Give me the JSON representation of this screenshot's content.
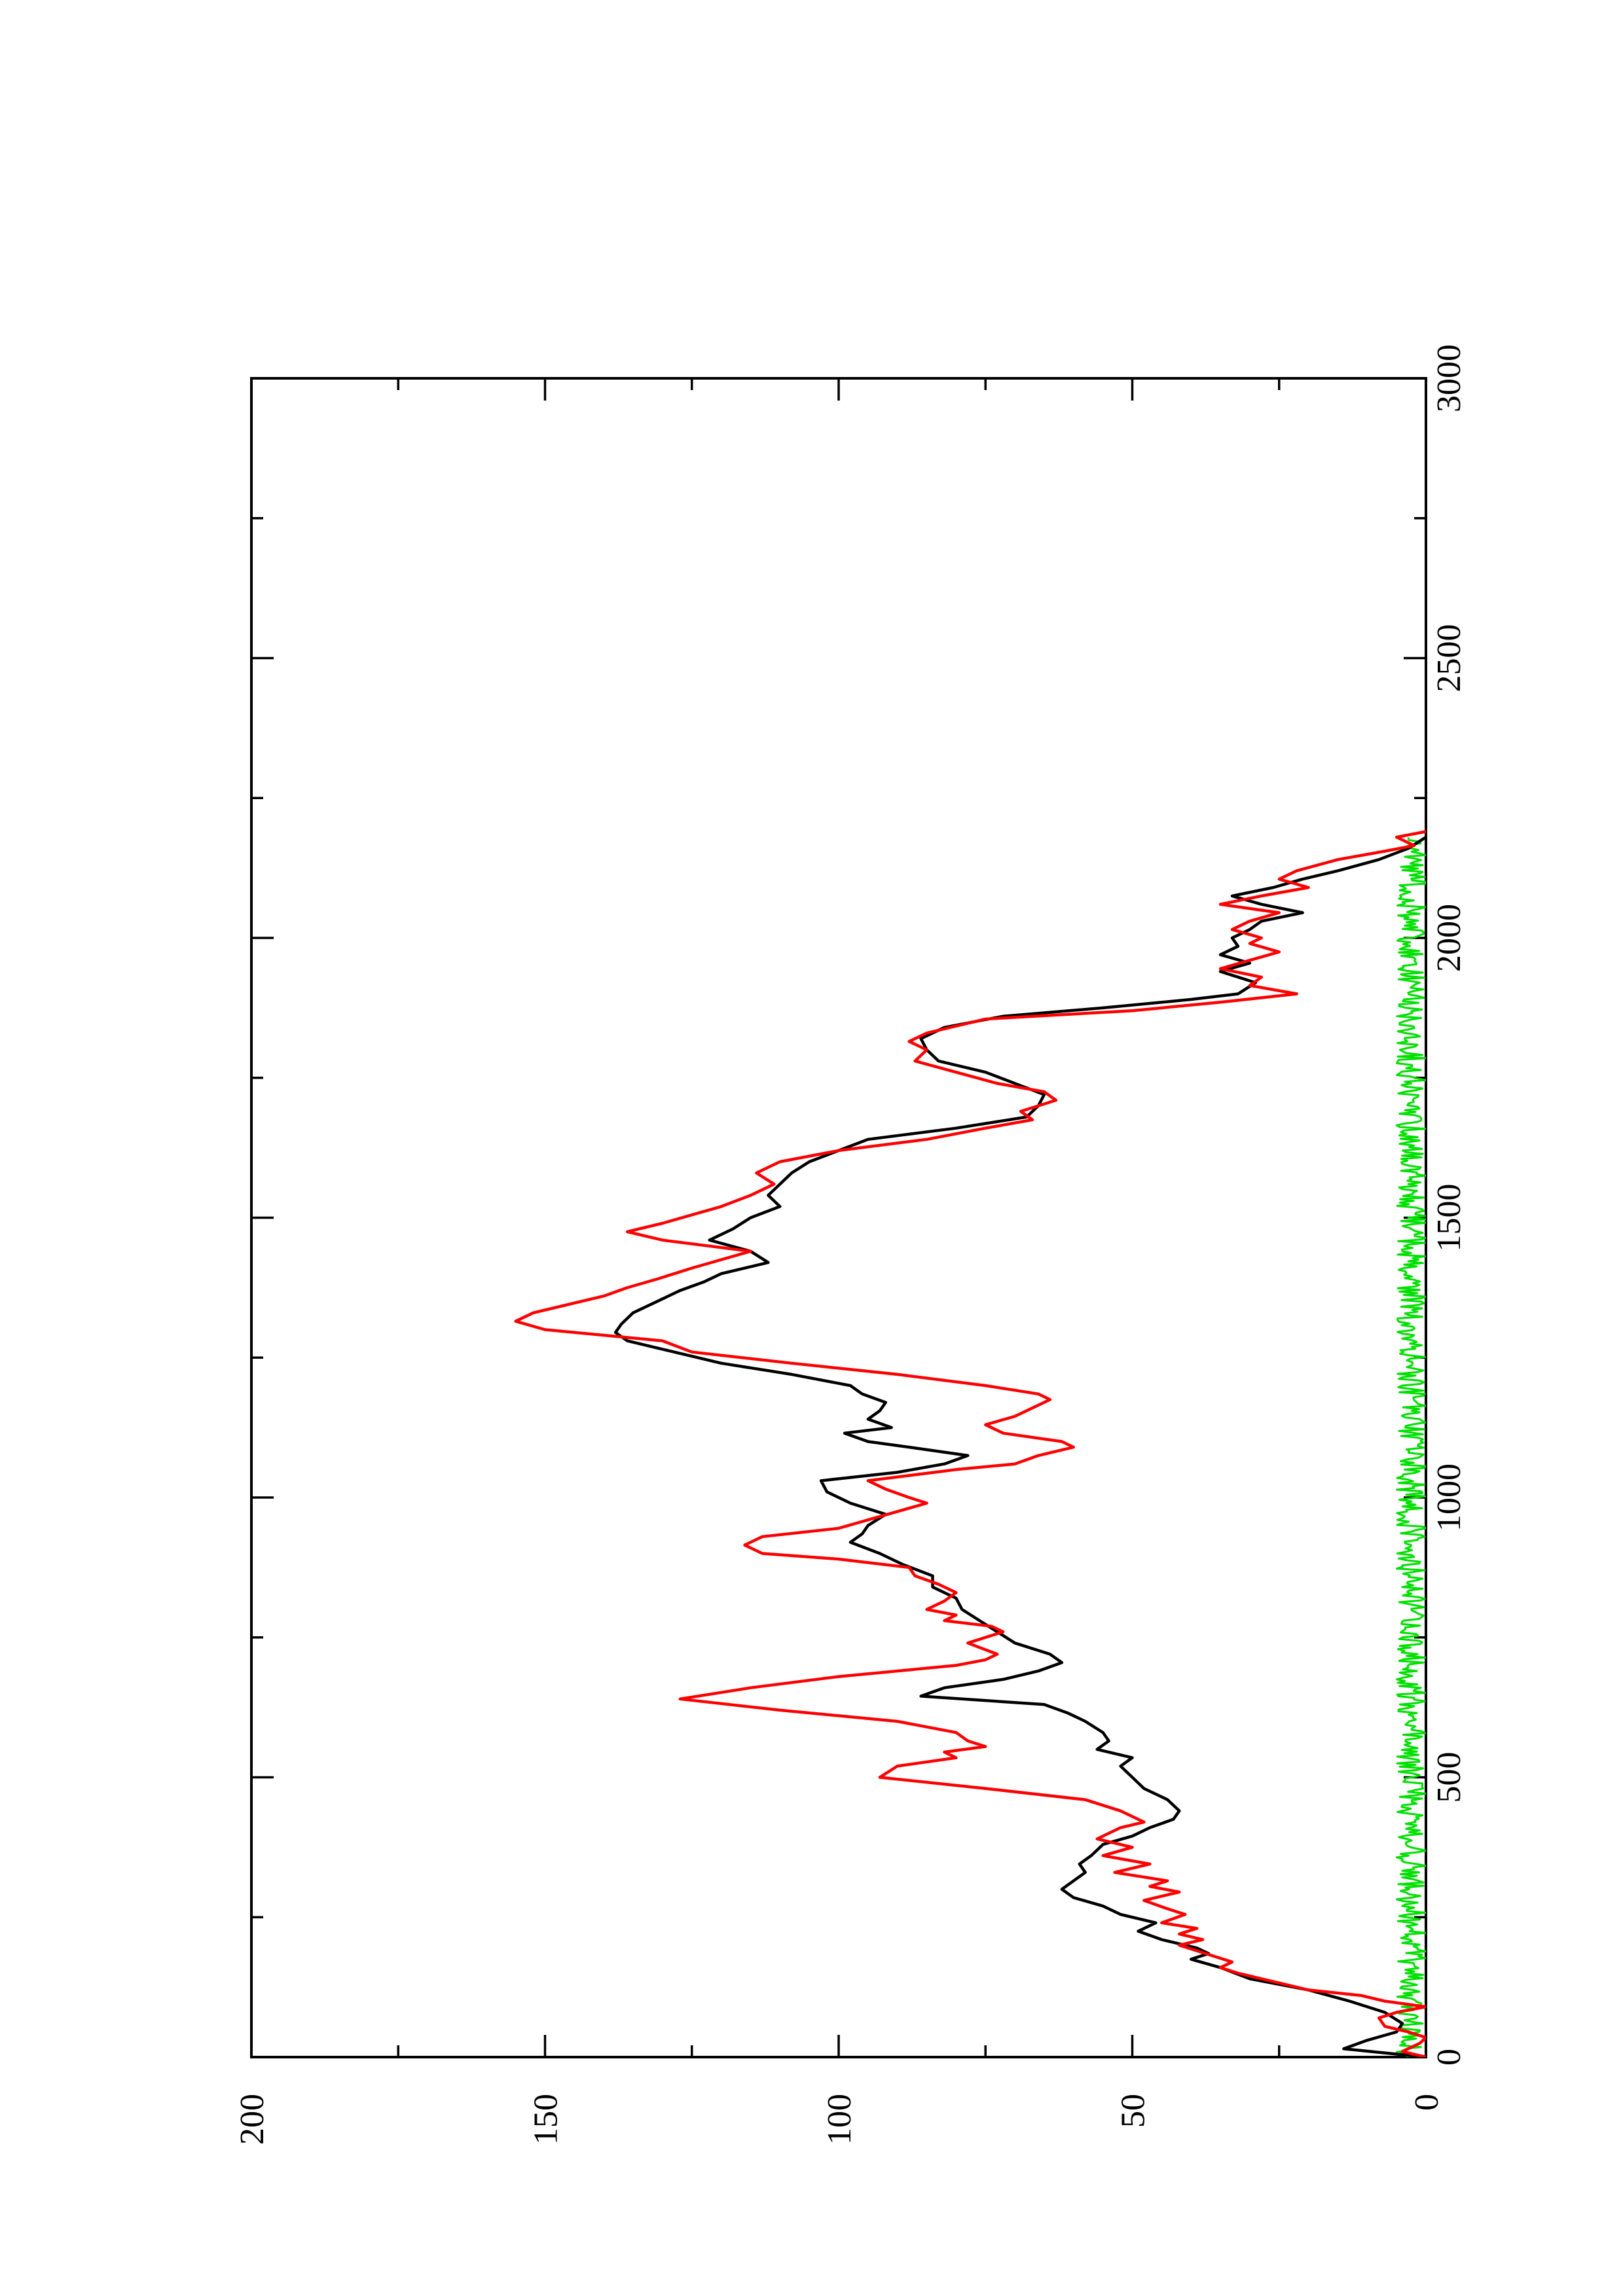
{
  "chart_data": {
    "type": "line",
    "orientation": "page rotated 90° counter-clockwise",
    "title": "",
    "xlabel": "",
    "ylabel": "",
    "xlim": [
      0,
      3000
    ],
    "ylim": [
      0,
      200
    ],
    "x_ticks_major": [
      0,
      500,
      1000,
      1500,
      2000,
      2500,
      3000
    ],
    "x_ticks_minor": [
      250,
      750,
      1250,
      1750,
      2250,
      2750
    ],
    "y_ticks_major": [
      0,
      50,
      100,
      150,
      200
    ],
    "y_ticks_minor": [
      25,
      75,
      125,
      175
    ],
    "x_tick_labels": [
      "0",
      "500",
      "1000",
      "1500",
      "2000",
      "2500",
      "3000"
    ],
    "y_tick_labels": [
      "0",
      "50",
      "100",
      "150",
      "200"
    ],
    "grid": false,
    "legend": "none",
    "series": [
      {
        "color": "#000000",
        "points": [
          [
            0,
            0
          ],
          [
            15,
            14
          ],
          [
            30,
            10
          ],
          [
            45,
            5
          ],
          [
            60,
            4
          ],
          [
            80,
            7
          ],
          [
            100,
            13
          ],
          [
            120,
            20
          ],
          [
            140,
            30
          ],
          [
            160,
            35
          ],
          [
            175,
            40
          ],
          [
            185,
            37
          ],
          [
            195,
            39
          ],
          [
            210,
            45
          ],
          [
            225,
            49
          ],
          [
            240,
            46
          ],
          [
            255,
            52
          ],
          [
            270,
            55
          ],
          [
            285,
            60
          ],
          [
            300,
            62
          ],
          [
            315,
            60
          ],
          [
            330,
            58
          ],
          [
            345,
            59
          ],
          [
            360,
            57
          ],
          [
            380,
            55
          ],
          [
            395,
            50
          ],
          [
            410,
            47
          ],
          [
            425,
            43
          ],
          [
            440,
            42
          ],
          [
            460,
            44
          ],
          [
            480,
            48
          ],
          [
            500,
            50
          ],
          [
            520,
            52
          ],
          [
            535,
            50
          ],
          [
            550,
            56
          ],
          [
            565,
            54
          ],
          [
            580,
            55
          ],
          [
            600,
            58
          ],
          [
            615,
            61
          ],
          [
            630,
            65
          ],
          [
            645,
            86
          ],
          [
            660,
            82
          ],
          [
            675,
            72
          ],
          [
            690,
            66
          ],
          [
            705,
            62
          ],
          [
            720,
            64
          ],
          [
            740,
            70
          ],
          [
            760,
            73
          ],
          [
            780,
            76
          ],
          [
            800,
            79
          ],
          [
            820,
            80
          ],
          [
            840,
            84
          ],
          [
            860,
            84
          ],
          [
            880,
            89
          ],
          [
            900,
            93
          ],
          [
            920,
            98
          ],
          [
            935,
            96
          ],
          [
            950,
            95
          ],
          [
            970,
            92
          ],
          [
            990,
            98
          ],
          [
            1010,
            102
          ],
          [
            1030,
            103
          ],
          [
            1045,
            90
          ],
          [
            1060,
            82
          ],
          [
            1075,
            78
          ],
          [
            1090,
            88
          ],
          [
            1100,
            95
          ],
          [
            1115,
            99
          ],
          [
            1125,
            91
          ],
          [
            1140,
            95
          ],
          [
            1155,
            93
          ],
          [
            1170,
            92
          ],
          [
            1185,
            96
          ],
          [
            1200,
            98
          ],
          [
            1220,
            108
          ],
          [
            1240,
            120
          ],
          [
            1260,
            128
          ],
          [
            1280,
            136
          ],
          [
            1295,
            138
          ],
          [
            1310,
            137
          ],
          [
            1330,
            135
          ],
          [
            1350,
            131
          ],
          [
            1370,
            127
          ],
          [
            1385,
            123
          ],
          [
            1400,
            120
          ],
          [
            1420,
            112
          ],
          [
            1440,
            115
          ],
          [
            1460,
            122
          ],
          [
            1480,
            118
          ],
          [
            1500,
            115
          ],
          [
            1520,
            110
          ],
          [
            1540,
            112
          ],
          [
            1560,
            110
          ],
          [
            1580,
            108
          ],
          [
            1600,
            105
          ],
          [
            1620,
            100
          ],
          [
            1640,
            95
          ],
          [
            1660,
            80
          ],
          [
            1680,
            68
          ],
          [
            1700,
            66
          ],
          [
            1720,
            65
          ],
          [
            1740,
            70
          ],
          [
            1760,
            75
          ],
          [
            1780,
            83
          ],
          [
            1800,
            85
          ],
          [
            1820,
            86
          ],
          [
            1840,
            82
          ],
          [
            1860,
            72
          ],
          [
            1875,
            55
          ],
          [
            1890,
            40
          ],
          [
            1900,
            32
          ],
          [
            1920,
            29
          ],
          [
            1940,
            35
          ],
          [
            1955,
            30
          ],
          [
            1970,
            35
          ],
          [
            1985,
            32
          ],
          [
            2000,
            33
          ],
          [
            2015,
            30
          ],
          [
            2030,
            28
          ],
          [
            2045,
            21
          ],
          [
            2060,
            28
          ],
          [
            2075,
            33
          ],
          [
            2090,
            26
          ],
          [
            2105,
            21
          ],
          [
            2120,
            15
          ],
          [
            2140,
            8
          ],
          [
            2160,
            3
          ],
          [
            2180,
            0
          ]
        ]
      },
      {
        "color": "#ff0000",
        "points": [
          [
            0,
            0
          ],
          [
            10,
            4
          ],
          [
            25,
            1
          ],
          [
            35,
            0
          ],
          [
            45,
            3
          ],
          [
            55,
            7
          ],
          [
            70,
            8
          ],
          [
            80,
            5
          ],
          [
            90,
            0
          ],
          [
            100,
            7
          ],
          [
            110,
            11
          ],
          [
            120,
            20
          ],
          [
            130,
            24
          ],
          [
            140,
            28
          ],
          [
            150,
            32
          ],
          [
            160,
            35
          ],
          [
            170,
            33
          ],
          [
            180,
            36
          ],
          [
            190,
            39
          ],
          [
            200,
            42
          ],
          [
            210,
            38
          ],
          [
            220,
            42
          ],
          [
            230,
            39
          ],
          [
            240,
            45
          ],
          [
            255,
            41
          ],
          [
            265,
            44
          ],
          [
            280,
            48
          ],
          [
            295,
            42
          ],
          [
            305,
            47
          ],
          [
            315,
            44
          ],
          [
            330,
            53
          ],
          [
            345,
            47
          ],
          [
            360,
            55
          ],
          [
            375,
            50
          ],
          [
            390,
            56
          ],
          [
            410,
            52
          ],
          [
            420,
            48
          ],
          [
            440,
            52
          ],
          [
            460,
            58
          ],
          [
            480,
            75
          ],
          [
            500,
            93
          ],
          [
            520,
            90
          ],
          [
            535,
            80
          ],
          [
            545,
            82
          ],
          [
            555,
            75
          ],
          [
            565,
            78
          ],
          [
            580,
            80
          ],
          [
            600,
            90
          ],
          [
            620,
            110
          ],
          [
            640,
            127
          ],
          [
            660,
            115
          ],
          [
            680,
            100
          ],
          [
            700,
            80
          ],
          [
            710,
            75
          ],
          [
            720,
            73
          ],
          [
            740,
            78
          ],
          [
            760,
            72
          ],
          [
            770,
            74
          ],
          [
            780,
            82
          ],
          [
            790,
            80
          ],
          [
            800,
            85
          ],
          [
            815,
            82
          ],
          [
            830,
            80
          ],
          [
            845,
            83
          ],
          [
            860,
            87
          ],
          [
            875,
            88
          ],
          [
            890,
            100
          ],
          [
            900,
            113
          ],
          [
            915,
            116
          ],
          [
            930,
            113
          ],
          [
            945,
            100
          ],
          [
            960,
            95
          ],
          [
            975,
            90
          ],
          [
            990,
            85
          ],
          [
            1000,
            88
          ],
          [
            1015,
            92
          ],
          [
            1030,
            95
          ],
          [
            1050,
            80
          ],
          [
            1060,
            70
          ],
          [
            1075,
            66
          ],
          [
            1090,
            60
          ],
          [
            1100,
            62
          ],
          [
            1115,
            72
          ],
          [
            1130,
            75
          ],
          [
            1145,
            70
          ],
          [
            1160,
            67
          ],
          [
            1175,
            64
          ],
          [
            1185,
            66
          ],
          [
            1200,
            75
          ],
          [
            1220,
            90
          ],
          [
            1240,
            108
          ],
          [
            1260,
            125
          ],
          [
            1280,
            130
          ],
          [
            1300,
            150
          ],
          [
            1315,
            155
          ],
          [
            1330,
            152
          ],
          [
            1345,
            146
          ],
          [
            1360,
            140
          ],
          [
            1375,
            136
          ],
          [
            1390,
            131
          ],
          [
            1410,
            125
          ],
          [
            1425,
            120
          ],
          [
            1440,
            115
          ],
          [
            1460,
            130
          ],
          [
            1475,
            136
          ],
          [
            1490,
            130
          ],
          [
            1505,
            125
          ],
          [
            1520,
            120
          ],
          [
            1540,
            115
          ],
          [
            1560,
            111
          ],
          [
            1580,
            114
          ],
          [
            1600,
            110
          ],
          [
            1620,
            100
          ],
          [
            1640,
            85
          ],
          [
            1660,
            75
          ],
          [
            1675,
            67
          ],
          [
            1690,
            69
          ],
          [
            1710,
            63
          ],
          [
            1725,
            65
          ],
          [
            1740,
            73
          ],
          [
            1760,
            80
          ],
          [
            1780,
            87
          ],
          [
            1800,
            85
          ],
          [
            1815,
            88
          ],
          [
            1830,
            85
          ],
          [
            1840,
            81
          ],
          [
            1855,
            75
          ],
          [
            1870,
            50
          ],
          [
            1885,
            35
          ],
          [
            1900,
            22
          ],
          [
            1915,
            30
          ],
          [
            1930,
            28
          ],
          [
            1945,
            35
          ],
          [
            1960,
            30
          ],
          [
            1975,
            25
          ],
          [
            1990,
            30
          ],
          [
            2000,
            28
          ],
          [
            2015,
            33
          ],
          [
            2030,
            30
          ],
          [
            2045,
            25
          ],
          [
            2060,
            35
          ],
          [
            2075,
            28
          ],
          [
            2090,
            20
          ],
          [
            2105,
            25
          ],
          [
            2120,
            22
          ],
          [
            2140,
            15
          ],
          [
            2155,
            7
          ],
          [
            2165,
            2
          ],
          [
            2180,
            5
          ],
          [
            2190,
            0
          ]
        ]
      },
      {
        "color": "#00e000",
        "style": "noise-band",
        "x_range": [
          0,
          2180
        ],
        "y_range": [
          0,
          5
        ]
      }
    ]
  }
}
